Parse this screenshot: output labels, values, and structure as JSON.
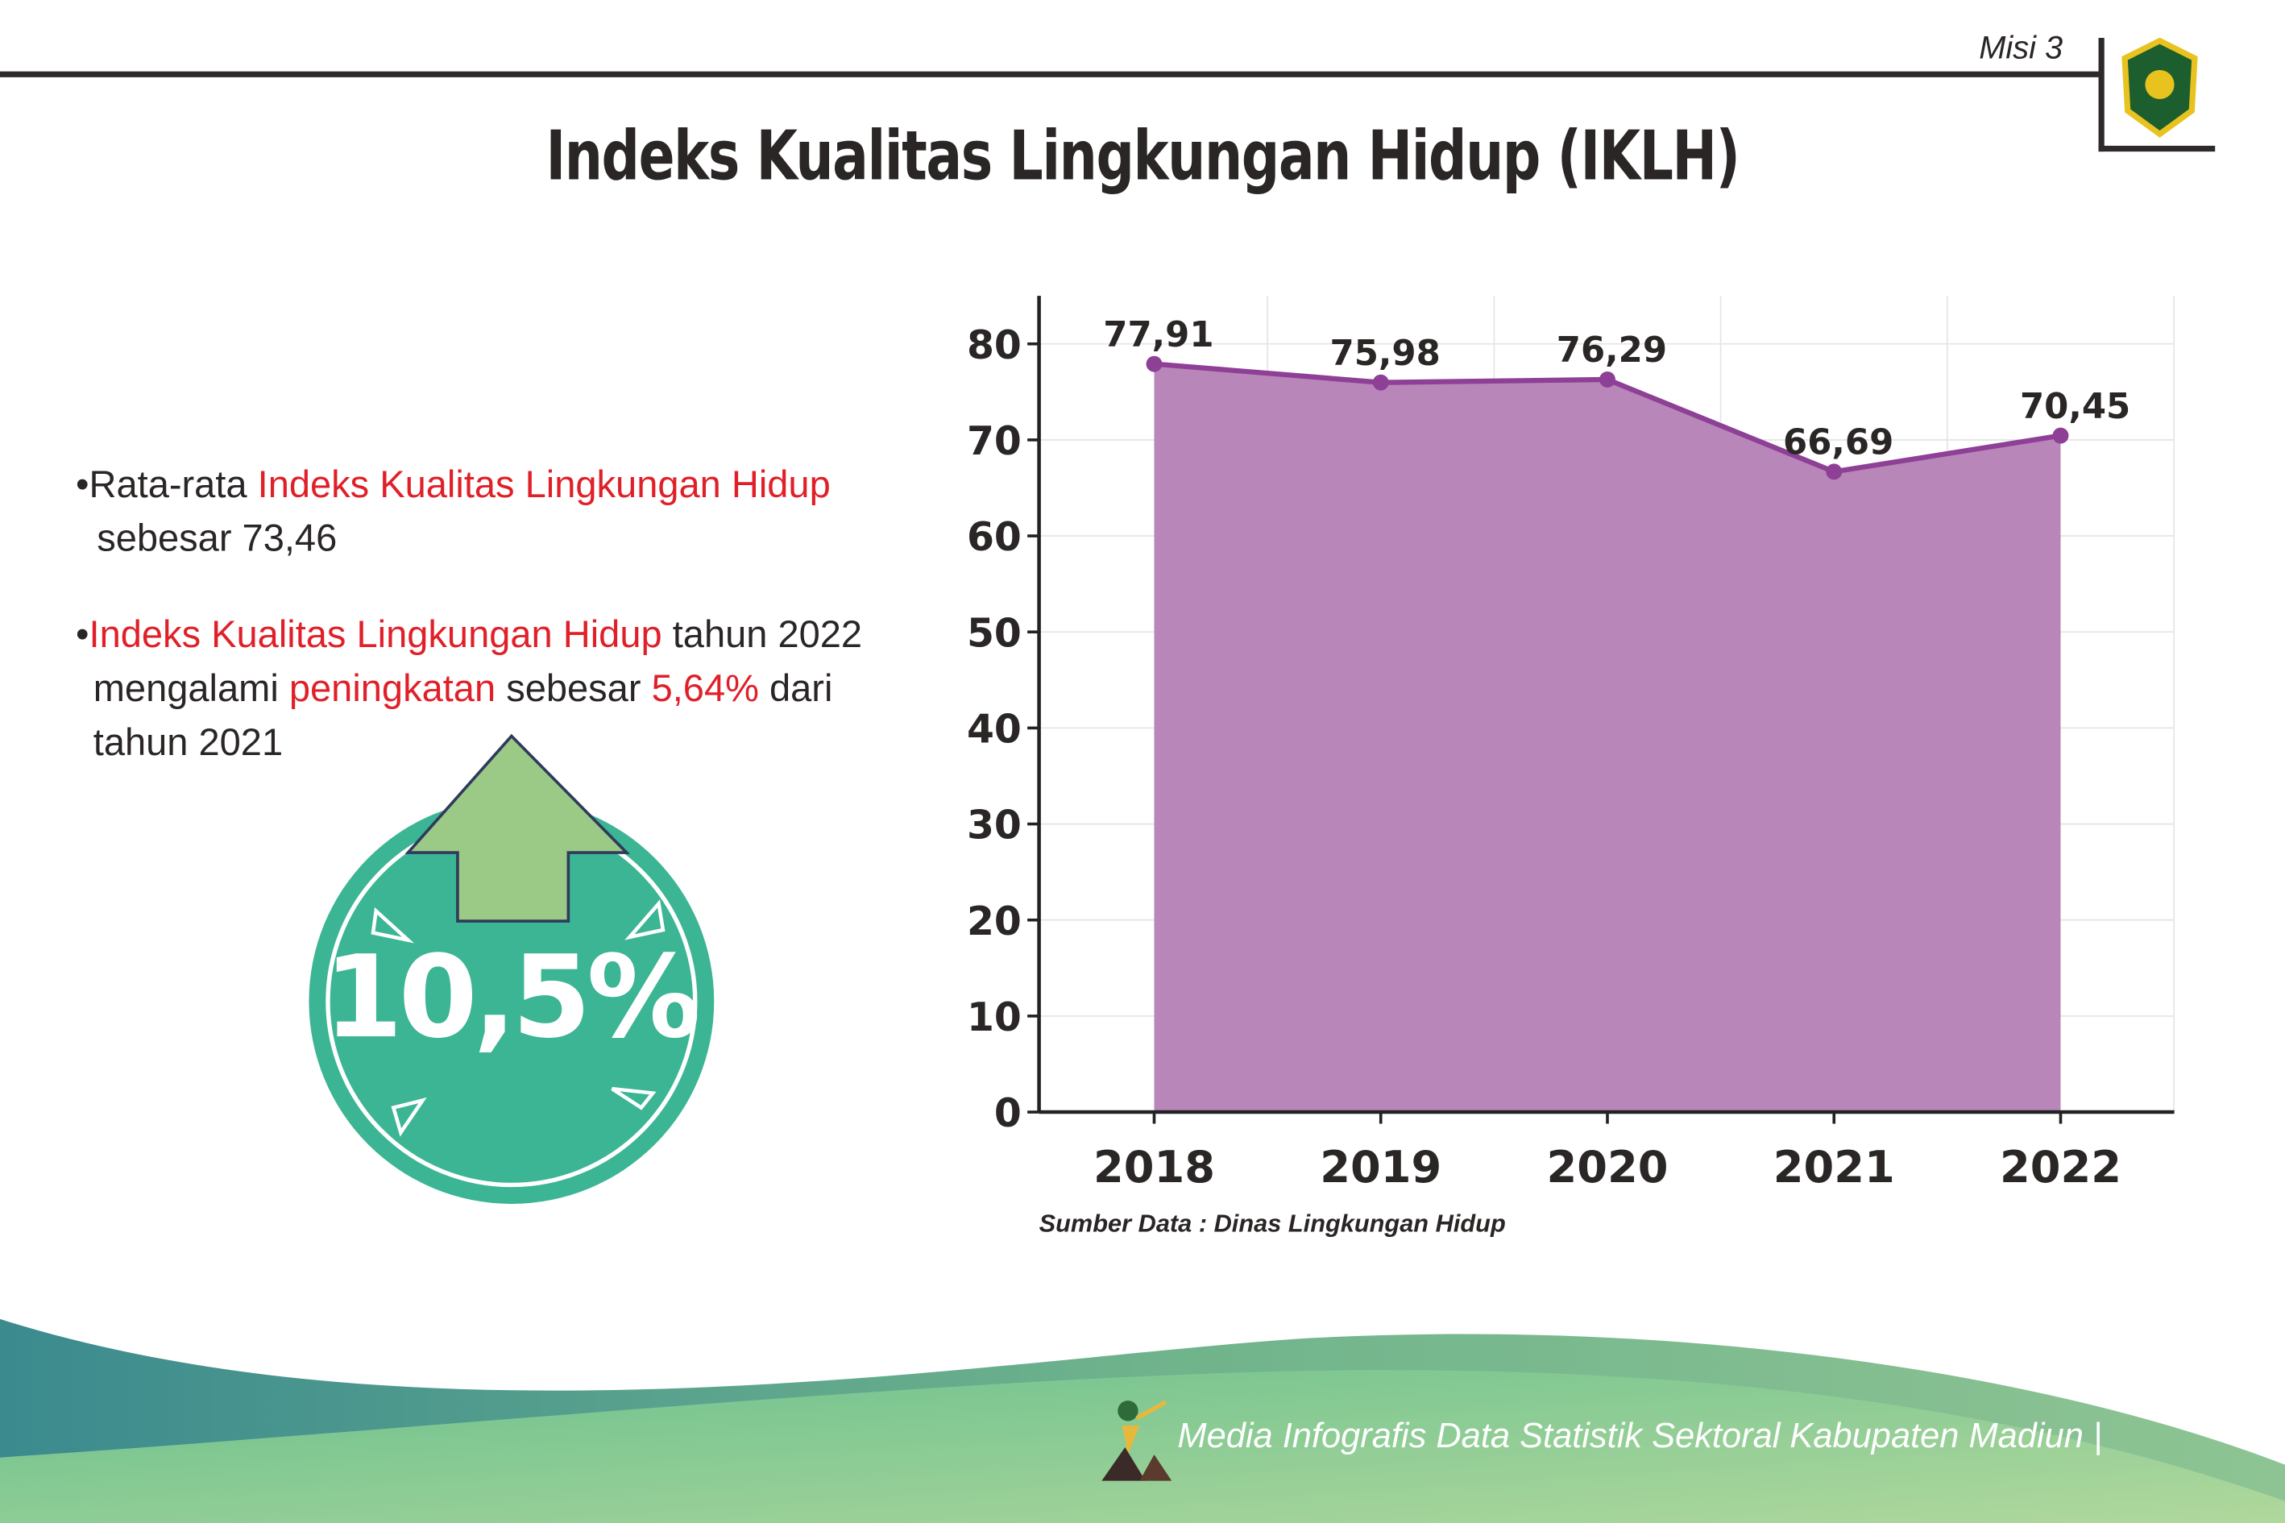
{
  "header": {
    "mission": "Misi 3",
    "title": "Indeks Kualitas Lingkungan Hidup (IKLH)"
  },
  "bullets": {
    "b1": {
      "p1": "Rata-rata ",
      "p2": "Indeks Kualitas Lingkungan Hidup",
      "p3": "sebesar 73,46"
    },
    "b2": {
      "p1": "Indeks Kualitas Lingkungan Hidup",
      "p2": " tahun 2022 mengalami ",
      "p3": "peningkatan",
      "p4": " sebesar ",
      "p5": "5,64%",
      "p6": " dari tahun 2021"
    }
  },
  "badge": {
    "value": "10,5%",
    "icon": "arrow-up-icon",
    "color": "#3bb593",
    "arrow_color": "#9bc986"
  },
  "chart_data": {
    "type": "area",
    "categories": [
      "2018",
      "2019",
      "2020",
      "2021",
      "2022"
    ],
    "values": [
      77.91,
      75.98,
      76.29,
      66.69,
      70.45
    ],
    "data_labels": [
      "77,91",
      "75,98",
      "76,29",
      "66,69",
      "70,45"
    ],
    "yticks": [
      "0",
      "10",
      "20",
      "30",
      "40",
      "50",
      "60",
      "70",
      "80"
    ],
    "ylim": [
      0,
      85
    ],
    "grid": true,
    "fill_color": "#b886b8",
    "line_color": "#8e3f96",
    "source": "Sumber Data : Dinas Lingkungan Hidup"
  },
  "footer": {
    "text": "Media Infografis Data Statistik Sektoral Kabupaten Madiun |"
  }
}
